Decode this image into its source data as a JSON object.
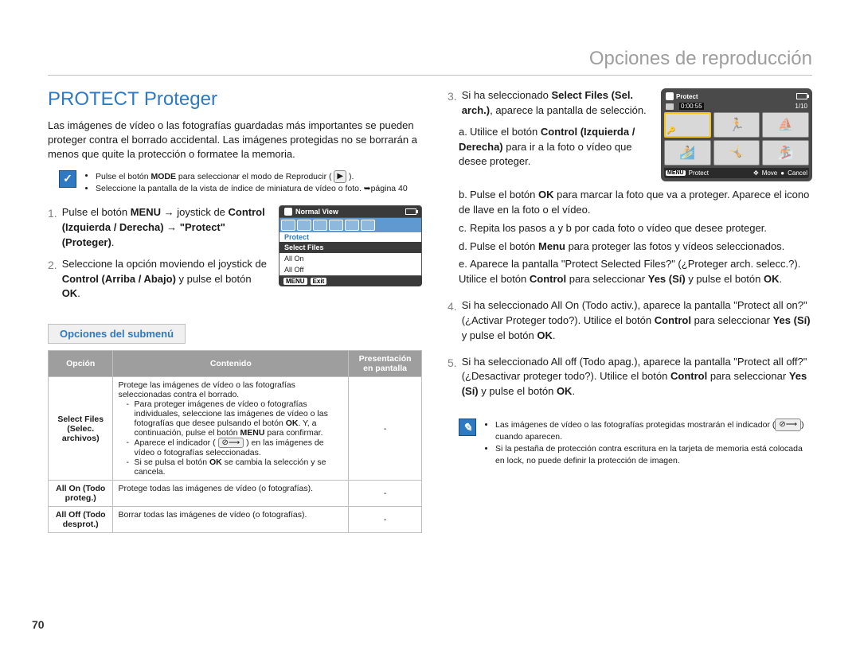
{
  "chapter_title": "Opciones de reproducción",
  "heading": "PROTECT Proteger",
  "intro": "Las imágenes de vídeo o las fotografías guardadas más importantes se pueden proteger contra el borrado accidental. Las imágenes protegidas no se borrarán a menos que quite la protección o formatee la memoria.",
  "note1": {
    "items": [
      "Pulse el botón <b>MODE</b> para seleccionar el modo de Reproducir ( <span class='key-icon'>▶</span> ).",
      "Seleccione la pantalla de la vista de índice de miniatura de vídeo o foto. ➥página 40"
    ]
  },
  "steps_left": {
    "s1_pre": "Pulse el botón ",
    "s1_menu": "MENU",
    "s1_arrow": " → joystick de ",
    "s1_ctrl": "Control (Izquierda / Derecha)",
    "s1_arrow2": " → ",
    "s1_protect": "\"Protect\" (Proteger)",
    "s1_dot": ".",
    "s2": "Seleccione la opción moviendo el joystick de <b>Control (Arriba / Abajo)</b> y pulse el botón <b>OK</b>."
  },
  "scr_menu": {
    "title": "Normal View",
    "highlight": "Protect",
    "selected": "Select Files",
    "opt2": "All On",
    "opt3": "All Off",
    "foot_menu": "MENU",
    "foot_exit": "Exit"
  },
  "subheading": "Opciones del submenú",
  "table": {
    "h1": "Opción",
    "h2": "Contenido",
    "h3": "Presentación en pantalla",
    "r1_opt": "Select Files (Selec. archivos)",
    "r1_body": "Protege las imágenes de vídeo o las fotografías seleccionadas contra el borrado.",
    "r1_li1": "Para proteger imágenes de vídeo o fotografías individuales, seleccione las imágenes de vídeo o las fotografías que desee pulsando el botón <b>OK</b>. Y, a continuación, pulse el botón <b>MENU</b> para confirmar.",
    "r1_li2": "Aparece el indicador ( <span class='lock-inline'>⊘⟶</span> ) en las imágenes de vídeo o fotografías seleccionadas.",
    "r1_li3": "Si se pulsa el botón <b>OK</b> se cambia la selección y se cancela.",
    "r1_disp": "-",
    "r2_opt": "All On (Todo proteg.)",
    "r2_body": "Protege todas las imágenes de vídeo (o fotografías).",
    "r2_disp": "-",
    "r3_opt": "All Off (Todo desprot.)",
    "r3_body": "Borrar todas las imágenes de vídeo (o fotografías).",
    "r3_disp": "-"
  },
  "steps_right": {
    "s3_head": "Si ha seleccionado <b>Select Files (Sel. arch.)</b>, aparece la pantalla de selección.",
    "s3a": "Utilice el botón <b>Control (Izquierda / Derecha)</b> para ir a la foto o vídeo que desee proteger.",
    "s3b": "Pulse el botón <b>OK</b> para marcar la foto que va a proteger. Aparece el icono de llave en la foto o el vídeo.",
    "s3c": "Repita los pasos a y b por cada foto o vídeo que desee proteger.",
    "s3d": "Pulse el botón <b>Menu</b> para proteger las fotos y vídeos seleccionados.",
    "s3e": "Aparece la pantalla \"Protect Selected Files?\" (¿Proteger arch. selecc.?). Utilice el botón <b>Control</b> para seleccionar <b>Yes (Sí)</b> y pulse el botón <b>OK</b>.",
    "s4": "Si ha seleccionado All On (Todo activ.), aparece la pantalla \"Protect all on?\" (¿Activar Proteger todo?). Utilice el botón <b>Control</b> para seleccionar <b>Yes (Sí)</b> y pulse el botón <b>OK</b>.",
    "s5": "Si ha seleccionado All off (Todo apag.), aparece la pantalla \"Protect all off?\" (¿Desactivar proteger todo?). Utilice el botón <b>Control</b> para seleccionar <b>Yes (Sí)</b> y pulse el botón <b>OK</b>."
  },
  "scr_grid": {
    "title": "Protect",
    "duration": "0:00:55",
    "counter": "1/10",
    "foot_menu": "MENU",
    "foot_protect": "Protect",
    "foot_move": "Move",
    "foot_cancel": "Cancel"
  },
  "note_right": {
    "items": [
      "Las imágenes de vídeo o las fotografías protegidas mostrarán el indicador (<span class='lock-inline'>⊘⟶</span>) cuando aparecen.",
      "Si la pestaña de protección contra escritura en la tarjeta de memoria está colocada en lock, no puede definir la protección de imagen."
    ]
  },
  "page_number": "70"
}
